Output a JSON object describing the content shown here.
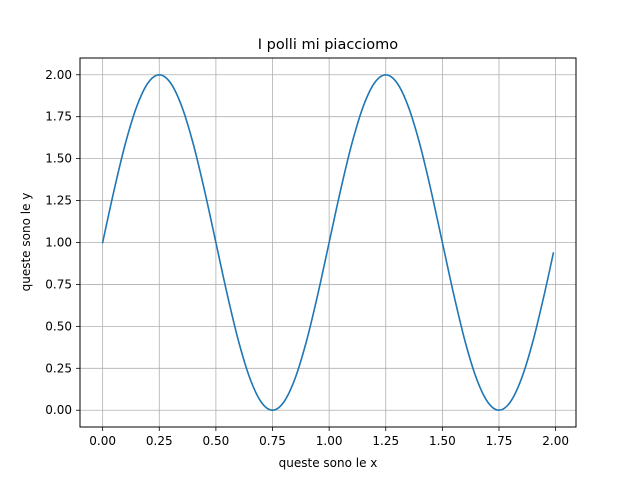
{
  "chart_data": {
    "type": "line",
    "title": "I polli mi piacciomo",
    "xlabel": "queste sono le x",
    "ylabel": "queste sono le y",
    "xlim": [
      -0.1,
      2.09
    ],
    "ylim": [
      -0.1,
      2.1
    ],
    "xticks": [
      "0.00",
      "0.25",
      "0.50",
      "0.75",
      "1.00",
      "1.25",
      "1.50",
      "1.75",
      "2.00"
    ],
    "yticks": [
      "0.00",
      "0.25",
      "0.50",
      "0.75",
      "1.00",
      "1.25",
      "1.50",
      "1.75",
      "2.00"
    ],
    "grid": true,
    "series": [
      {
        "color": "#1f77b4",
        "x": [
          0.0,
          0.05,
          0.1,
          0.15,
          0.2,
          0.25,
          0.3,
          0.35,
          0.4,
          0.45,
          0.5,
          0.55,
          0.6,
          0.65,
          0.7,
          0.75,
          0.8,
          0.85,
          0.9,
          0.95,
          1.0,
          1.05,
          1.1,
          1.15,
          1.2,
          1.25,
          1.3,
          1.35,
          1.4,
          1.45,
          1.5,
          1.55,
          1.6,
          1.65,
          1.7,
          1.75,
          1.8,
          1.85,
          1.9,
          1.95,
          1.99
        ],
        "y": [
          1.0,
          1.309,
          1.588,
          1.809,
          1.951,
          2.0,
          1.951,
          1.809,
          1.588,
          1.309,
          1.0,
          0.691,
          0.412,
          0.191,
          0.049,
          0.0,
          0.049,
          0.191,
          0.412,
          0.691,
          1.0,
          1.309,
          1.588,
          1.809,
          1.951,
          2.0,
          1.951,
          1.809,
          1.588,
          1.309,
          1.0,
          0.691,
          0.412,
          0.191,
          0.049,
          0.0,
          0.049,
          0.191,
          0.412,
          0.691,
          0.937
        ]
      }
    ]
  }
}
